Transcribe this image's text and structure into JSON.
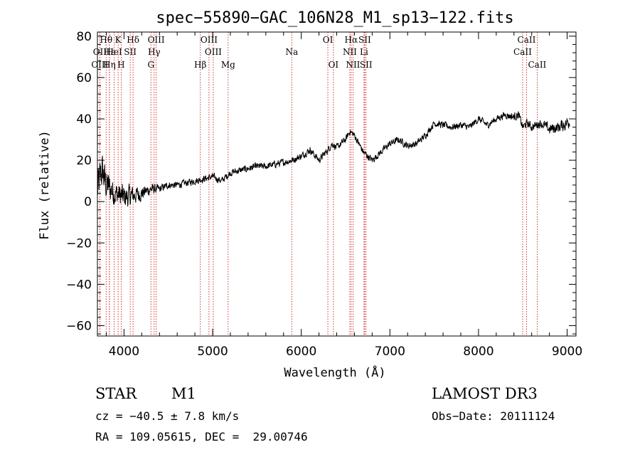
{
  "chart_data": {
    "type": "line",
    "title": "spec−55890−GAC_106N28_M1_sp13−122.fits",
    "xlabel": "Wavelength (Å)",
    "ylabel": "Flux (relative)",
    "xlim": [
      3700,
      9100
    ],
    "ylim": [
      -65,
      82
    ],
    "xticks": [
      4000,
      5000,
      6000,
      7000,
      8000,
      9000
    ],
    "yticks": [
      -60,
      -40,
      -20,
      0,
      20,
      40,
      60,
      80
    ],
    "ytick_labels": [
      "−60",
      "−40",
      "−20",
      "0",
      "20",
      "40",
      "60",
      "80"
    ],
    "grid": false,
    "line_color": "#000000",
    "marker_color": "#cc0000",
    "spectral_lines": [
      {
        "label": "Hθ",
        "wavelength": 3798,
        "row": 0
      },
      {
        "label": "K",
        "wavelength": 3934,
        "row": 0
      },
      {
        "label": "Hδ",
        "wavelength": 4102,
        "row": 0
      },
      {
        "label": "OIII",
        "wavelength": 4363,
        "row": 0
      },
      {
        "label": "OIII",
        "wavelength": 4959,
        "row": 0
      },
      {
        "label": "OI",
        "wavelength": 6300,
        "row": 0
      },
      {
        "label": "Hα",
        "wavelength": 6563,
        "row": 0
      },
      {
        "label": "SII",
        "wavelength": 6716,
        "row": 0
      },
      {
        "label": "CaII",
        "wavelength": 8542,
        "row": 0
      },
      {
        "label": "OII",
        "wavelength": 3727,
        "row": 1
      },
      {
        "label": "Hε",
        "wavelength": 3835,
        "row": 1
      },
      {
        "label": "HeI",
        "wavelength": 3889,
        "row": 1
      },
      {
        "label": "SII",
        "wavelength": 4070,
        "row": 1
      },
      {
        "label": "Hγ",
        "wavelength": 4340,
        "row": 1
      },
      {
        "label": "OIII",
        "wavelength": 5007,
        "row": 1
      },
      {
        "label": "Na",
        "wavelength": 5893,
        "row": 1
      },
      {
        "label": "NII",
        "wavelength": 6548,
        "row": 1
      },
      {
        "label": "Li",
        "wavelength": 6708,
        "row": 1
      },
      {
        "label": "CaII",
        "wavelength": 8498,
        "row": 1
      },
      {
        "label": "OIII",
        "wavelength": 3727,
        "row": 2
      },
      {
        "label": "Hη",
        "wavelength": 3835,
        "row": 2
      },
      {
        "label": "H",
        "wavelength": 3968,
        "row": 2
      },
      {
        "label": "G",
        "wavelength": 4304,
        "row": 2
      },
      {
        "label": "Hβ",
        "wavelength": 4861,
        "row": 2
      },
      {
        "label": "Mg",
        "wavelength": 5175,
        "row": 2
      },
      {
        "label": "OI",
        "wavelength": 6363,
        "row": 2
      },
      {
        "label": "NII",
        "wavelength": 6584,
        "row": 2
      },
      {
        "label": "SII",
        "wavelength": 6731,
        "row": 2
      },
      {
        "label": "CaII",
        "wavelength": 8662,
        "row": 2
      }
    ],
    "spectrum_anchors": {
      "wavelength": [
        3700,
        3750,
        3800,
        3900,
        4000,
        4100,
        4200,
        4300,
        4400,
        4500,
        4600,
        4700,
        4800,
        4900,
        5000,
        5100,
        5200,
        5300,
        5400,
        5500,
        5600,
        5700,
        5800,
        5900,
        6000,
        6100,
        6200,
        6300,
        6350,
        6400,
        6500,
        6550,
        6600,
        6650,
        6700,
        6750,
        6800,
        6900,
        7000,
        7100,
        7200,
        7300,
        7400,
        7500,
        7600,
        7700,
        7800,
        7900,
        8000,
        8100,
        8200,
        8300,
        8400,
        8450,
        8500,
        8550,
        8600,
        8700,
        8800,
        8900,
        9000,
        9030
      ],
      "flux": [
        5,
        15,
        8,
        4,
        2,
        3,
        4,
        6,
        6,
        8,
        8,
        9,
        10,
        11,
        12,
        10,
        14,
        15,
        16,
        17,
        17,
        18,
        19,
        20,
        22,
        25,
        20,
        25,
        28,
        26,
        30,
        34,
        32,
        28,
        24,
        22,
        20,
        24,
        28,
        30,
        27,
        28,
        32,
        38,
        37,
        36,
        37,
        36,
        40,
        37,
        40,
        42,
        41,
        42,
        36,
        38,
        36,
        38,
        35,
        36,
        38,
        40
      ],
      "noise": [
        16,
        14,
        12,
        9,
        9,
        7,
        5,
        4,
        3,
        2.5,
        2.5,
        2.5,
        2.5,
        2.5,
        2.5,
        2.5,
        2.5,
        2.5,
        2.5,
        2.5,
        2.5,
        2.5,
        2.5,
        2.5,
        2.5,
        2.5,
        2.5,
        2.5,
        2.5,
        2.5,
        2.5,
        2.5,
        2.5,
        2.5,
        2.5,
        2.5,
        2.5,
        2.5,
        2.5,
        2.5,
        2.5,
        2.5,
        2.5,
        2.5,
        2.5,
        2.5,
        2.5,
        2.5,
        2.5,
        2.5,
        2.5,
        2.5,
        3,
        3,
        3,
        3,
        3,
        3,
        4,
        4,
        5,
        6
      ]
    }
  },
  "info": {
    "object_type": "STAR",
    "subclass": "M1",
    "survey": "LAMOST DR3",
    "redshift": "cz = −40.5 ± 7.8 km/s",
    "obs_date": "Obs−Date: 20111124",
    "coords": "RA = 109.05615, DEC =  29.00746"
  }
}
